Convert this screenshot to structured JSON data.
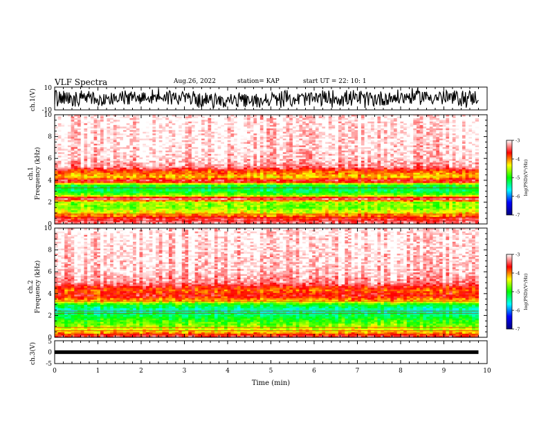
{
  "header": {
    "title": "VLF Spectra",
    "date": "Aug.26, 2022",
    "station": "station= KAP",
    "start": "start  UT  =   22: 10: 1"
  },
  "colors": {
    "axis": "#000000",
    "background": "#ffffff",
    "colormap": [
      "#00007f",
      "#0000ff",
      "#00ffff",
      "#00ff00",
      "#ffff00",
      "#ff0000",
      "#ffffff"
    ]
  },
  "chart_data": [
    {
      "type": "line",
      "id": "ch1-waveform",
      "ylabel": "ch.1(V)",
      "ylim": [
        -10,
        10
      ],
      "ytick_labels": [
        "10",
        "-10"
      ],
      "xlim": [
        0,
        10
      ],
      "data_extent_min": 9.8,
      "envelope": {
        "x": [
          0,
          0.5,
          1.0,
          1.5,
          2.0,
          2.5,
          3.0,
          3.5,
          4.0,
          4.5,
          5.0,
          5.5,
          6.0,
          6.5,
          7.0,
          7.5,
          8.0,
          8.5,
          9.0,
          9.5,
          9.8
        ],
        "ymin": [
          -8,
          -9,
          -8,
          -9,
          -7,
          -6,
          -8,
          -9,
          -9,
          -10,
          -9,
          -8,
          -9,
          -8,
          -9,
          -9,
          -7,
          -6,
          -8,
          -9,
          -6
        ],
        "ymax": [
          9,
          8,
          9,
          8,
          9,
          10,
          9,
          6,
          6,
          5,
          7,
          8,
          8,
          9,
          8,
          9,
          9,
          10,
          9,
          9,
          9
        ]
      }
    },
    {
      "type": "heatmap",
      "id": "ch1-spectrogram",
      "ylabel": "ch.1\nFrequency (kHz)",
      "ylim": [
        0,
        10
      ],
      "yticks": [
        0,
        2,
        4,
        6,
        8,
        10
      ],
      "xlim": [
        0,
        10
      ],
      "data_extent_min": 9.8,
      "colorbar": {
        "label": "log(PSD)(V²/Hz)",
        "range": [
          -7,
          -3
        ],
        "ticks": [
          -7,
          -6,
          -5,
          -4,
          -3
        ]
      },
      "frequency_profile_khz": [
        [
          0.0,
          -3.3
        ],
        [
          0.5,
          -3.6
        ],
        [
          1.0,
          -4.3
        ],
        [
          1.5,
          -4.7
        ],
        [
          2.0,
          -4.6
        ],
        [
          2.3,
          -3.2
        ],
        [
          2.6,
          -4.6
        ],
        [
          3.0,
          -5.2
        ],
        [
          3.5,
          -5.1
        ],
        [
          3.7,
          -4.3
        ],
        [
          3.9,
          -3.4
        ],
        [
          4.3,
          -4.2
        ],
        [
          4.8,
          -3.9
        ],
        [
          5.2,
          -3.3
        ],
        [
          6.0,
          -3.1
        ],
        [
          10.0,
          -3.0
        ]
      ]
    },
    {
      "type": "heatmap",
      "id": "ch2-spectrogram",
      "ylabel": "ch.2\nFrequency (kHz)",
      "ylim": [
        0,
        10
      ],
      "yticks": [
        0,
        2,
        4,
        6,
        8,
        10
      ],
      "xlim": [
        0,
        10
      ],
      "data_extent_min": 9.8,
      "colorbar": {
        "label": "log(PSD)(V²/Hz)",
        "range": [
          -7,
          -3
        ],
        "ticks": [
          -7,
          -6,
          -5,
          -4,
          -3
        ]
      },
      "frequency_profile_khz": [
        [
          0.0,
          -3.4
        ],
        [
          0.5,
          -4.2
        ],
        [
          1.0,
          -4.6
        ],
        [
          1.5,
          -4.9
        ],
        [
          2.0,
          -5.2
        ],
        [
          2.5,
          -5.5
        ],
        [
          3.0,
          -5.0
        ],
        [
          3.3,
          -4.2
        ],
        [
          3.8,
          -3.6
        ],
        [
          4.3,
          -3.9
        ],
        [
          5.0,
          -3.3
        ],
        [
          6.0,
          -3.1
        ],
        [
          10.0,
          -3.0
        ]
      ]
    },
    {
      "type": "line",
      "id": "ch3-waveform",
      "ylabel": "ch.3(V)",
      "ylim": [
        -5,
        5
      ],
      "ytick_labels": [
        "5",
        "0",
        "-5"
      ],
      "xlim": [
        0,
        10
      ],
      "data_extent_min": 9.8,
      "envelope": {
        "ymin": -0.8,
        "ymax": 0.8
      }
    }
  ],
  "x_axis": {
    "label": "Time  (min)",
    "ticks": [
      "0",
      "1",
      "2",
      "3",
      "4",
      "5",
      "6",
      "7",
      "8",
      "9",
      "10"
    ]
  }
}
